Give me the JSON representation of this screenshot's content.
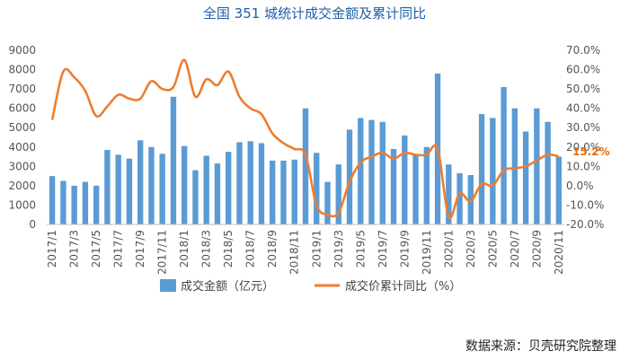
{
  "chart_data": {
    "type": "bar+line",
    "title": "全国 351 城统计成交金额及累计同比",
    "categories": [
      "2017/1",
      "2017/2",
      "2017/3",
      "2017/4",
      "2017/5",
      "2017/6",
      "2017/7",
      "2017/8",
      "2017/9",
      "2017/10",
      "2017/11",
      "2017/12",
      "2018/1",
      "2018/2",
      "2018/3",
      "2018/4",
      "2018/5",
      "2018/6",
      "2018/7",
      "2018/8",
      "2018/9",
      "2018/10",
      "2018/11",
      "2018/12",
      "2019/1",
      "2019/2",
      "2019/3",
      "2019/4",
      "2019/5",
      "2019/6",
      "2019/7",
      "2019/8",
      "2019/9",
      "2019/10",
      "2019/11",
      "2019/12",
      "2020/1",
      "2020/2",
      "2020/3",
      "2020/4",
      "2020/5",
      "2020/6",
      "2020/7",
      "2020/8",
      "2020/9",
      "2020/10",
      "2020/11"
    ],
    "x_tick_labels": [
      "2017/1",
      "2017/3",
      "2017/5",
      "2017/7",
      "2017/9",
      "2017/11",
      "2018/1",
      "2018/3",
      "2018/5",
      "2018/7",
      "2018/9",
      "2018/11",
      "2019/1",
      "2019/3",
      "2019/5",
      "2019/7",
      "2019/9",
      "2019/11",
      "2020/1",
      "2020/3",
      "2020/5",
      "2020/7",
      "2020/9",
      "2020/11"
    ],
    "series": [
      {
        "name": "成交金额（亿元）",
        "type": "bar",
        "axis": "left",
        "color": "#5b9bd5",
        "values": [
          2500,
          2250,
          2000,
          2200,
          2000,
          3850,
          3600,
          3400,
          4350,
          4000,
          3650,
          6600,
          4050,
          2800,
          3550,
          3150,
          3750,
          4250,
          4300,
          4200,
          3300,
          3300,
          3350,
          6000,
          3700,
          2200,
          3100,
          4900,
          5500,
          5400,
          5300,
          3900,
          4600,
          3600,
          4000,
          7800,
          3100,
          2650,
          2550,
          5700,
          5500,
          7100,
          6000,
          4800,
          6000,
          5300,
          3500
        ]
      },
      {
        "name": "成交价累计同比（%）",
        "type": "line",
        "axis": "right",
        "color": "#ed7d31",
        "values": [
          34,
          59,
          56,
          49,
          36,
          41,
          47,
          45,
          45,
          54,
          50,
          51,
          65,
          46,
          55,
          52,
          59,
          46,
          40,
          37,
          27,
          22,
          19,
          16,
          -10,
          -15,
          -14,
          2,
          12,
          15,
          17,
          14,
          17,
          16,
          16,
          19,
          -16,
          -4,
          -8,
          1,
          0,
          8,
          9,
          10,
          13,
          16,
          15.2
        ]
      }
    ],
    "y_left": {
      "ylim": [
        0,
        9000
      ],
      "ticks": [
        "0",
        "1000",
        "2000",
        "3000",
        "4000",
        "5000",
        "6000",
        "7000",
        "8000",
        "9000"
      ]
    },
    "y_right": {
      "ylim": [
        -20,
        70
      ],
      "ticks": [
        "-20.0%",
        "-10.0%",
        "0.0%",
        "10.0%",
        "20.0%",
        "30.0%",
        "40.0%",
        "50.0%",
        "60.0%",
        "70.0%"
      ]
    },
    "annotation": "15.2%",
    "legend_position": "bottom",
    "grid": false
  },
  "source_note": "数据来源：贝壳研究院整理"
}
